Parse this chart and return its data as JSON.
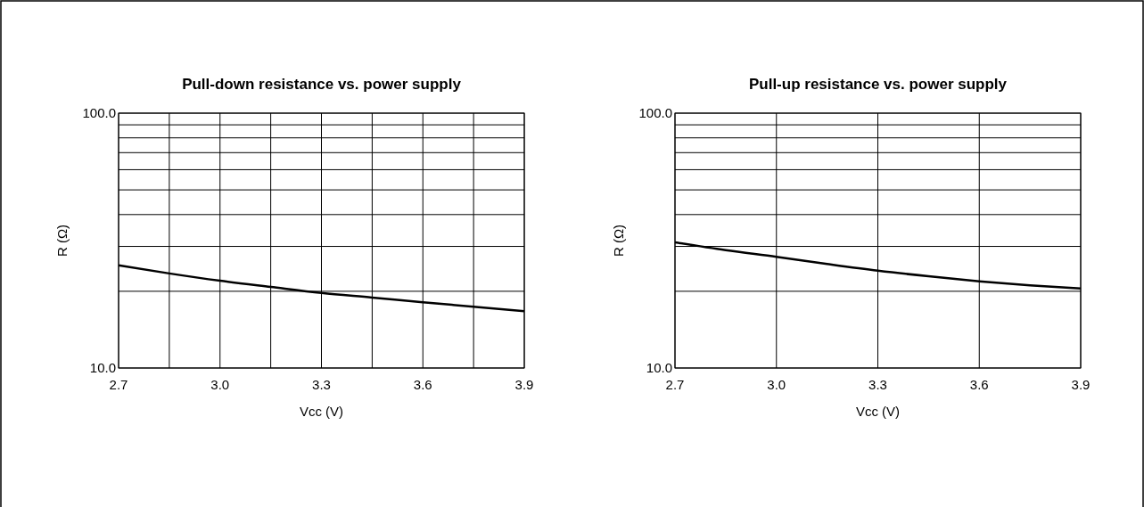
{
  "chart_data": [
    {
      "type": "line",
      "title": "Pull-down resistance vs. power supply",
      "xlabel": "Vcc (V)",
      "ylabel": "R (Ω)",
      "log": "y",
      "grid": true,
      "marker": "none",
      "x": [
        2.7,
        2.85,
        3.0,
        3.15,
        3.3,
        3.45,
        3.6,
        3.75,
        3.9
      ],
      "series": [
        {
          "color": "#000000",
          "values": [
            25.3,
            23.5,
            22.0,
            20.8,
            19.7,
            18.9,
            18.1,
            17.4,
            16.7
          ]
        }
      ],
      "xlim": [
        2.7,
        3.9
      ],
      "xticks": [
        {
          "value": 2.7,
          "label": "2.7"
        },
        {
          "value": 2.85,
          "label": null
        },
        {
          "value": 3.0,
          "label": "3.0"
        },
        {
          "value": 3.15,
          "label": null
        },
        {
          "value": 3.3,
          "label": "3.3"
        },
        {
          "value": 3.45,
          "label": null
        },
        {
          "value": 3.6,
          "label": "3.6"
        },
        {
          "value": 3.75,
          "label": null
        },
        {
          "value": 3.9,
          "label": "3.9"
        }
      ],
      "ylim": [
        10,
        100
      ],
      "yticks": [
        {
          "value": 10,
          "label": "10.0"
        },
        {
          "value": 20,
          "label": null
        },
        {
          "value": 30,
          "label": null
        },
        {
          "value": 40,
          "label": null
        },
        {
          "value": 50,
          "label": null
        },
        {
          "value": 60,
          "label": null
        },
        {
          "value": 70,
          "label": null
        },
        {
          "value": 80,
          "label": null
        },
        {
          "value": 90,
          "label": null
        },
        {
          "value": 100,
          "label": "100.0"
        }
      ]
    },
    {
      "type": "line",
      "title": "Pull-up resistance vs. power supply",
      "xlabel": "Vcc (V)",
      "ylabel": "R (Ω)",
      "log": "y",
      "grid": true,
      "marker": "none",
      "x": [
        2.7,
        2.85,
        3.0,
        3.15,
        3.3,
        3.45,
        3.6,
        3.75,
        3.9
      ],
      "series": [
        {
          "color": "#000000",
          "values": [
            31.1,
            29.0,
            27.3,
            25.6,
            24.1,
            22.9,
            21.9,
            21.1,
            20.5
          ]
        }
      ],
      "xlim": [
        2.7,
        3.9
      ],
      "xticks": [
        {
          "value": 2.7,
          "label": "2.7"
        },
        {
          "value": 3.0,
          "label": "3.0"
        },
        {
          "value": 3.3,
          "label": "3.3"
        },
        {
          "value": 3.6,
          "label": "3.6"
        },
        {
          "value": 3.9,
          "label": "3.9"
        }
      ],
      "ylim": [
        10,
        100
      ],
      "yticks": [
        {
          "value": 10,
          "label": "10.0"
        },
        {
          "value": 20,
          "label": null
        },
        {
          "value": 30,
          "label": null
        },
        {
          "value": 40,
          "label": null
        },
        {
          "value": 50,
          "label": null
        },
        {
          "value": 60,
          "label": null
        },
        {
          "value": 70,
          "label": null
        },
        {
          "value": 80,
          "label": null
        },
        {
          "value": 90,
          "label": null
        },
        {
          "value": 100,
          "label": "100.0"
        }
      ]
    }
  ]
}
